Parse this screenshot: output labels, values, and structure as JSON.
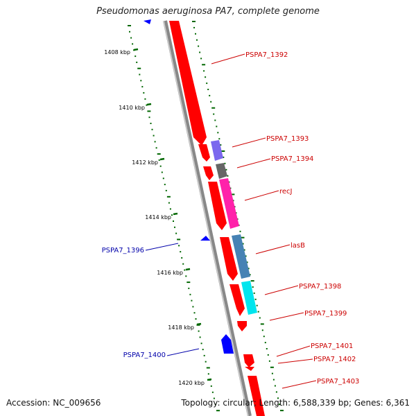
{
  "title": "Pseudomonas aeruginosa PA7, complete genome",
  "footer": {
    "accession": "Accession: NC_009656",
    "summary": "Topology: circular; Length: 6,588,339 bp; Genes: 6,361"
  },
  "ticks": [
    "1408 kbp",
    "1410 kbp",
    "1412 kbp",
    "1414 kbp",
    "1416 kbp",
    "1418 kbp",
    "1420 kbp"
  ],
  "gene_labels": [
    {
      "text": "PSPA7_1392",
      "color": "#cc0000"
    },
    {
      "text": "PSPA7_1393",
      "color": "#cc0000"
    },
    {
      "text": "PSPA7_1394",
      "color": "#cc0000"
    },
    {
      "text": "recJ",
      "color": "#cc0000"
    },
    {
      "text": "lasB",
      "color": "#cc0000"
    },
    {
      "text": "PSPA7_1398",
      "color": "#cc0000"
    },
    {
      "text": "PSPA7_1399",
      "color": "#cc0000"
    },
    {
      "text": "PSPA7_1401",
      "color": "#cc0000"
    },
    {
      "text": "PSPA7_1402",
      "color": "#cc0000"
    },
    {
      "text": "PSPA7_1403",
      "color": "#cc0000"
    },
    {
      "text": "PSPA7_1396",
      "color": "#0000aa"
    },
    {
      "text": "PSPA7_1400",
      "color": "#0000aa"
    }
  ],
  "colors": {
    "forward_gene": "#ff0000",
    "reverse_gene": "#0000ff",
    "backbone": "#888888",
    "gc_dots": "#006600",
    "cog_purple": "#7b68ee",
    "cog_gray": "#666666",
    "cog_magenta": "#ff22aa",
    "cog_steelblue": "#4682b4",
    "cog_cyan": "#00e5ee"
  }
}
